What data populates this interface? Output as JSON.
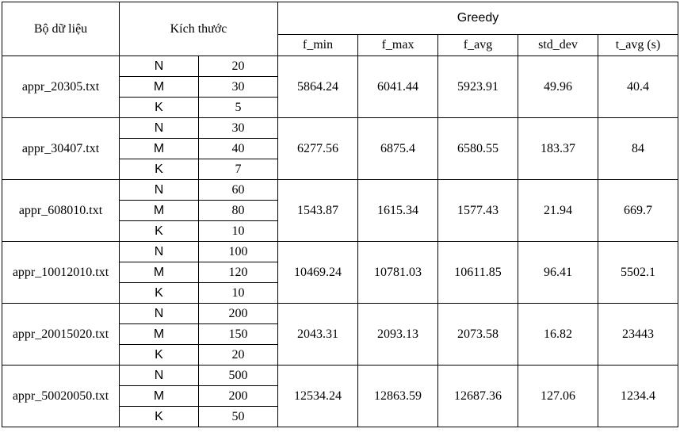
{
  "headers": {
    "dataset": "Bộ dữ liệu",
    "size": "Kích thước",
    "group": "Greedy",
    "f_min": "f_min",
    "f_max": "f_max",
    "f_avg": "f_avg",
    "std_dev": "std_dev",
    "t_avg": "t_avg (s)"
  },
  "rows": [
    {
      "name": "appr_20305.txt",
      "params": [
        {
          "k": "N",
          "v": "20"
        },
        {
          "k": "M",
          "v": "30"
        },
        {
          "k": "K",
          "v": "5"
        }
      ],
      "f_min": "5864.24",
      "f_max": "6041.44",
      "f_avg": "5923.91",
      "std_dev": "49.96",
      "t_avg": "40.4"
    },
    {
      "name": "appr_30407.txt",
      "params": [
        {
          "k": "N",
          "v": "30"
        },
        {
          "k": "M",
          "v": "40"
        },
        {
          "k": "K",
          "v": "7"
        }
      ],
      "f_min": "6277.56",
      "f_max": "6875.4",
      "f_avg": "6580.55",
      "std_dev": "183.37",
      "t_avg": "84"
    },
    {
      "name": "appr_608010.txt",
      "params": [
        {
          "k": "N",
          "v": "60"
        },
        {
          "k": "M",
          "v": "80"
        },
        {
          "k": "K",
          "v": "10"
        }
      ],
      "f_min": "1543.87",
      "f_max": "1615.34",
      "f_avg": "1577.43",
      "std_dev": "21.94",
      "t_avg": "669.7"
    },
    {
      "name": "appr_10012010.txt",
      "params": [
        {
          "k": "N",
          "v": "100"
        },
        {
          "k": "M",
          "v": "120"
        },
        {
          "k": "K",
          "v": "10"
        }
      ],
      "f_min": "10469.24",
      "f_max": "10781.03",
      "f_avg": "10611.85",
      "std_dev": "96.41",
      "t_avg": "5502.1"
    },
    {
      "name": "appr_20015020.txt",
      "params": [
        {
          "k": "N",
          "v": "200"
        },
        {
          "k": "M",
          "v": "150"
        },
        {
          "k": "K",
          "v": "20"
        }
      ],
      "f_min": "2043.31",
      "f_max": "2093.13",
      "f_avg": "2073.58",
      "std_dev": "16.82",
      "t_avg": "23443"
    },
    {
      "name": "appr_50020050.txt",
      "params": [
        {
          "k": "N",
          "v": "500"
        },
        {
          "k": "M",
          "v": "200"
        },
        {
          "k": "K",
          "v": "50"
        }
      ],
      "f_min": "12534.24",
      "f_max": "12863.59",
      "f_avg": "12687.36",
      "std_dev": "127.06",
      "t_avg": "1234.4"
    }
  ]
}
